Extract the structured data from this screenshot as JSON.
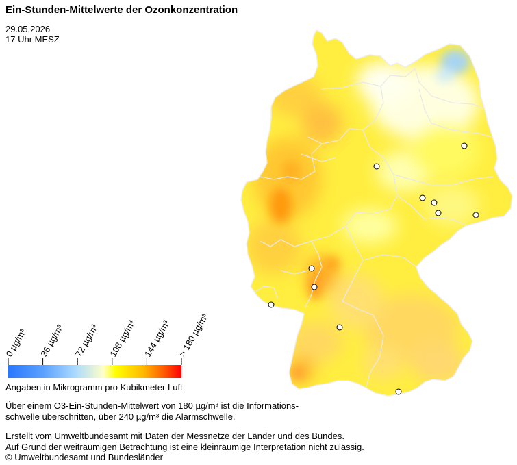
{
  "header": {
    "title": "Ein-Stunden-Mittelwerte der Ozonkonzentration",
    "date": "29.05.2026",
    "time": "17 Uhr MESZ"
  },
  "legend": {
    "ticks": [
      "0  µg/m³",
      "36  µg/m³",
      "72  µg/m³",
      "108  µg/m³",
      "144  µg/m³",
      "> 180  µg/m³"
    ],
    "colors": [
      "#2a78ff",
      "#59a0ff",
      "#a8d8ff",
      "#ffffc8",
      "#ffff00",
      "#ffb800",
      "#ff5a00",
      "#ff0000"
    ],
    "unit_text": "Angaben in Mikrogramm pro Kubikmeter Luft"
  },
  "info": {
    "line1": "Über einem O3-Ein-Stunden-Mittelwert von 180 µg/m³ ist die Informations-",
    "line2": "schwelle überschritten, über 240 µg/m³ die Alarmschwelle."
  },
  "credits": {
    "line1": "Erstellt vom Umweltbundesamt mit Daten der Messnetze der Länder und des Bundes.",
    "line2": "Auf Grund der weiträumigen Betrachtung ist eine kleinräumige Interpretation nicht zulässig.",
    "line3": "© Umweltbundesamt und Bundesländer"
  },
  "map": {
    "land_color": "#ffe84a",
    "border_color": "#e6e6e6",
    "station_fill": "#ffffff",
    "station_stroke": "#000000"
  }
}
